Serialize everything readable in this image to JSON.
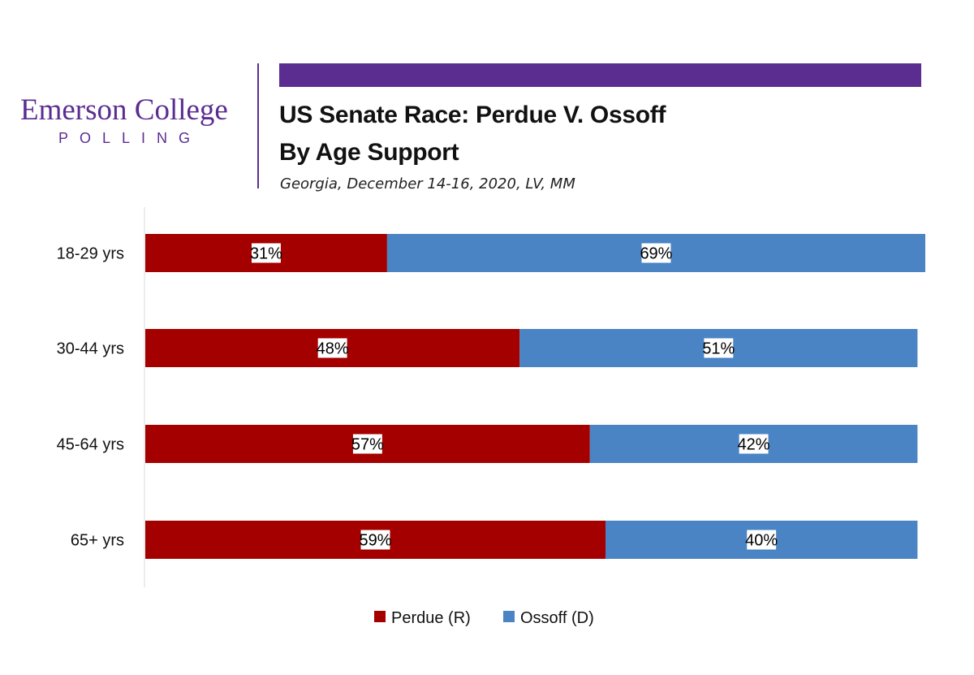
{
  "logo": {
    "name": "Emerson College",
    "sub": "POLLING"
  },
  "header": {
    "title_line1": "US Senate Race: Perdue V. Ossoff",
    "title_line2": "By Age Support",
    "subtitle": "Georgia, December 14-16, 2020, LV, MM",
    "accent_color": "#5b2d91"
  },
  "chart_data": {
    "type": "bar",
    "orientation": "horizontal",
    "stacked": true,
    "categories": [
      "18-29 yrs",
      "30-44 yrs",
      "45-64 yrs",
      "65+ yrs"
    ],
    "series": [
      {
        "name": "Perdue (R)",
        "color": "#a50000",
        "values": [
          31,
          48,
          57,
          59
        ],
        "labels": [
          "31%",
          "48%",
          "57%",
          "59%"
        ]
      },
      {
        "name": "Ossoff (D)",
        "color": "#4b84c4",
        "values": [
          69,
          51,
          42,
          40
        ],
        "labels": [
          "69%",
          "51%",
          "42%",
          "40%"
        ]
      }
    ],
    "xlim": [
      0,
      100
    ],
    "grid": false,
    "legend_position": "bottom"
  }
}
